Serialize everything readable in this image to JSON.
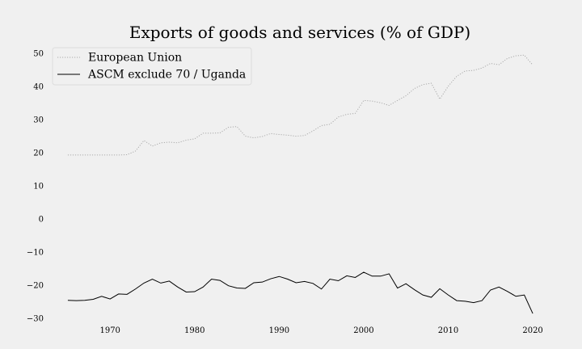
{
  "chart_data": {
    "type": "line",
    "title": "Exports of goods and services (% of GDP)",
    "xlabel": "",
    "ylabel": "",
    "xlim": [
      1963,
      2022
    ],
    "ylim": [
      -32,
      52
    ],
    "xticks": [
      1970,
      1980,
      1990,
      2000,
      2010,
      2020
    ],
    "yticks": [
      -30,
      -20,
      -10,
      0,
      10,
      20,
      30,
      40,
      50
    ],
    "grid": false,
    "legend": "top-left",
    "x": [
      1965,
      1966,
      1967,
      1968,
      1969,
      1970,
      1971,
      1972,
      1973,
      1974,
      1975,
      1976,
      1977,
      1978,
      1979,
      1980,
      1981,
      1982,
      1983,
      1984,
      1985,
      1986,
      1987,
      1988,
      1989,
      1990,
      1991,
      1992,
      1993,
      1994,
      1995,
      1996,
      1997,
      1998,
      1999,
      2000,
      2001,
      2002,
      2003,
      2004,
      2005,
      2006,
      2007,
      2008,
      2009,
      2010,
      2011,
      2012,
      2013,
      2014,
      2015,
      2016,
      2017,
      2018,
      2019,
      2020
    ],
    "series": [
      {
        "name": "European Union",
        "color": "#aaaaaa",
        "dash": "dotted",
        "values": [
          19.3,
          19.3,
          19.3,
          19.3,
          19.3,
          19.3,
          19.3,
          19.4,
          20.5,
          23.7,
          22.0,
          23.0,
          23.2,
          23.0,
          23.8,
          24.2,
          25.9,
          25.9,
          26.0,
          27.7,
          27.9,
          25.0,
          24.5,
          24.9,
          25.8,
          25.5,
          25.3,
          25.0,
          25.2,
          26.6,
          28.2,
          28.6,
          30.8,
          31.6,
          31.9,
          35.8,
          35.6,
          35.1,
          34.3,
          35.8,
          37.2,
          39.4,
          40.6,
          41.0,
          36.2,
          40.1,
          43.1,
          44.7,
          44.9,
          45.6,
          47.0,
          46.6,
          48.5,
          49.3,
          49.5,
          46.5
        ]
      },
      {
        "name": "ASCM exclude 70 / Uganda",
        "color": "#000000",
        "dash": "solid",
        "values": [
          -24.6,
          -24.7,
          -24.6,
          -24.3,
          -23.4,
          -24.2,
          -22.7,
          -22.8,
          -21.2,
          -19.4,
          -18.2,
          -19.4,
          -18.8,
          -20.6,
          -22.1,
          -22.0,
          -20.6,
          -18.2,
          -18.6,
          -20.2,
          -20.9,
          -21.0,
          -19.3,
          -19.1,
          -18.1,
          -17.4,
          -18.2,
          -19.3,
          -18.9,
          -19.5,
          -21.2,
          -18.2,
          -18.7,
          -17.2,
          -17.7,
          -16.1,
          -17.3,
          -17.3,
          -16.6,
          -20.9,
          -19.6,
          -21.4,
          -23.0,
          -23.7,
          -21.1,
          -23.0,
          -24.7,
          -24.9,
          -25.3,
          -24.7,
          -21.5,
          -20.6,
          -21.9,
          -23.4,
          -23.0,
          -28.6
        ]
      }
    ]
  }
}
